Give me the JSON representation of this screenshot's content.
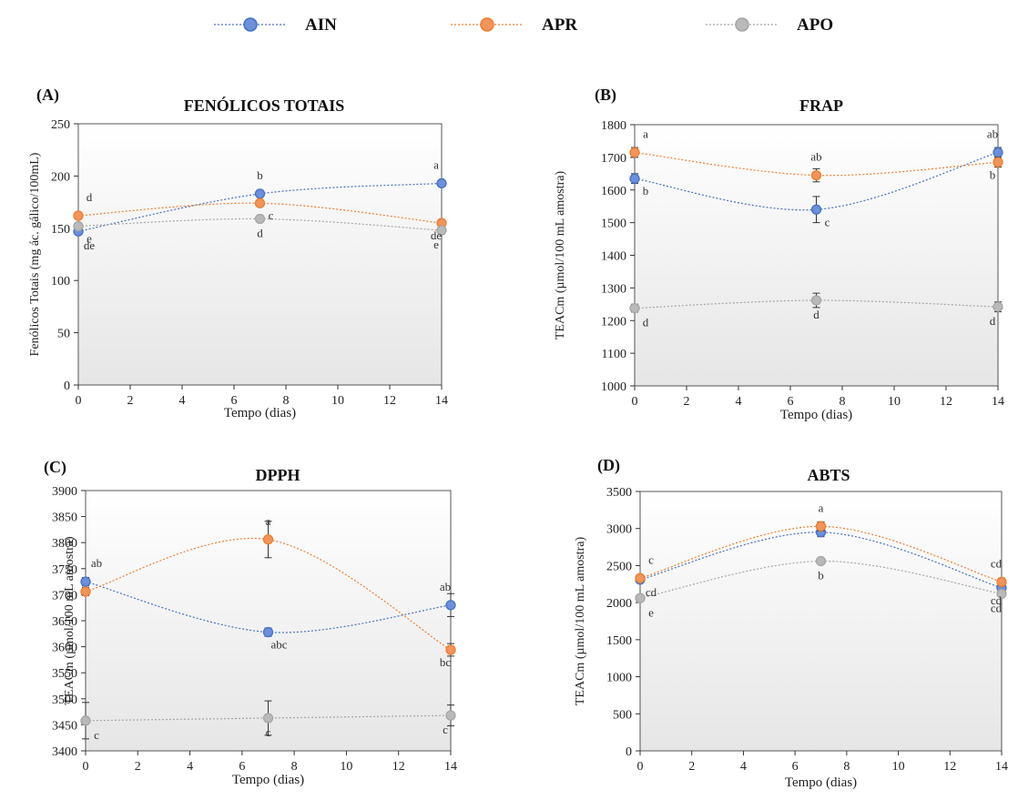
{
  "legend": [
    {
      "name": "AIN",
      "color": "#4472C4",
      "fill": "#6E8FD9"
    },
    {
      "name": "APR",
      "color": "#ED7D31",
      "fill": "#F0955C"
    },
    {
      "name": "APO",
      "color": "#A5A5A5",
      "fill": "#B9B9B9"
    }
  ],
  "chart_data": [
    {
      "type": "line",
      "panel_label": "(A)",
      "title": "FENÓLICOS TOTAIS",
      "xlabel": "Tempo (dias)",
      "ylabel": "Fenólicos Totais (mg ác. gálico/100mL)",
      "xlim": [
        0,
        14
      ],
      "ylim": [
        0,
        250
      ],
      "xticks": [
        0,
        2,
        4,
        6,
        8,
        10,
        12,
        14
      ],
      "yticks": [
        0,
        50,
        100,
        150,
        200,
        250
      ],
      "x": [
        0,
        7,
        14
      ],
      "series": [
        {
          "name": "AIN",
          "values": [
            147,
            183,
            193
          ],
          "errors": [
            3,
            3,
            2
          ],
          "labels": [
            "de",
            "b",
            "a"
          ]
        },
        {
          "name": "APR",
          "values": [
            162,
            174,
            155
          ],
          "errors": [
            3,
            3,
            3
          ],
          "labels": [
            "d",
            "c",
            "de"
          ]
        },
        {
          "name": "APO",
          "values": [
            152,
            159,
            148
          ],
          "errors": [
            3,
            3,
            3
          ],
          "labels": [
            "e",
            "d",
            "e"
          ]
        }
      ]
    },
    {
      "type": "line",
      "panel_label": "(B)",
      "title": "FRAP",
      "xlabel": "Tempo (dias)",
      "ylabel": "TEACm (µmol/100 mL amostra)",
      "xlim": [
        0,
        14
      ],
      "ylim": [
        1000,
        1800
      ],
      "xticks": [
        0,
        2,
        4,
        6,
        8,
        10,
        12,
        14
      ],
      "yticks": [
        1000,
        1100,
        1200,
        1300,
        1400,
        1500,
        1600,
        1700,
        1800
      ],
      "x": [
        0,
        7,
        14
      ],
      "series": [
        {
          "name": "AIN",
          "values": [
            1635,
            1540,
            1715
          ],
          "errors": [
            15,
            40,
            15
          ],
          "labels": [
            "b",
            "c",
            "ab"
          ]
        },
        {
          "name": "APR",
          "values": [
            1715,
            1645,
            1685
          ],
          "errors": [
            15,
            20,
            15
          ],
          "labels": [
            "a",
            "ab",
            "b"
          ]
        },
        {
          "name": "APO",
          "values": [
            1238,
            1262,
            1242
          ],
          "errors": [
            12,
            22,
            15
          ],
          "labels": [
            "d",
            "d",
            "d"
          ]
        }
      ]
    },
    {
      "type": "line",
      "panel_label": "(C)",
      "title": "DPPH",
      "xlabel": "Tempo (dias)",
      "ylabel": "TEACm (µmol/100 mL amostra)",
      "xlim": [
        0,
        14
      ],
      "ylim": [
        3400,
        3900
      ],
      "xticks": [
        0,
        2,
        4,
        6,
        8,
        10,
        12,
        14
      ],
      "yticks": [
        3400,
        3450,
        3500,
        3550,
        3600,
        3650,
        3700,
        3750,
        3800,
        3850,
        3900
      ],
      "x": [
        0,
        7,
        14
      ],
      "series": [
        {
          "name": "AIN",
          "values": [
            3725,
            3628,
            3680
          ],
          "errors": [
            8,
            8,
            22
          ],
          "labels": [
            "ab",
            "abc",
            "ab"
          ]
        },
        {
          "name": "APR",
          "values": [
            3706,
            3806,
            3594
          ],
          "errors": [
            8,
            35,
            12
          ],
          "labels": [
            "",
            "a",
            "bc"
          ]
        },
        {
          "name": "APO",
          "values": [
            3458,
            3463,
            3468
          ],
          "errors": [
            35,
            33,
            20
          ],
          "labels": [
            "c",
            "c",
            "c"
          ]
        }
      ]
    },
    {
      "type": "line",
      "panel_label": "(D)",
      "title": "ABTS",
      "xlabel": "Tempo (dias)",
      "ylabel": "TEACm (µmol/100 mL amostra)",
      "xlim": [
        0,
        14
      ],
      "ylim": [
        0,
        3500
      ],
      "xticks": [
        0,
        2,
        4,
        6,
        8,
        10,
        12,
        14
      ],
      "yticks": [
        0,
        500,
        1000,
        1500,
        2000,
        2500,
        3000,
        3500
      ],
      "x": [
        0,
        7,
        14
      ],
      "series": [
        {
          "name": "AIN",
          "values": [
            2310,
            2950,
            2200
          ],
          "errors": [
            40,
            60,
            50
          ],
          "labels": [
            "cd",
            "",
            "cd"
          ]
        },
        {
          "name": "APR",
          "values": [
            2330,
            3030,
            2280
          ],
          "errors": [
            40,
            60,
            50
          ],
          "labels": [
            "c",
            "a",
            "cd"
          ]
        },
        {
          "name": "APO",
          "values": [
            2060,
            2560,
            2120
          ],
          "errors": [
            30,
            40,
            40
          ],
          "labels": [
            "e",
            "b",
            "cd"
          ]
        }
      ]
    }
  ]
}
